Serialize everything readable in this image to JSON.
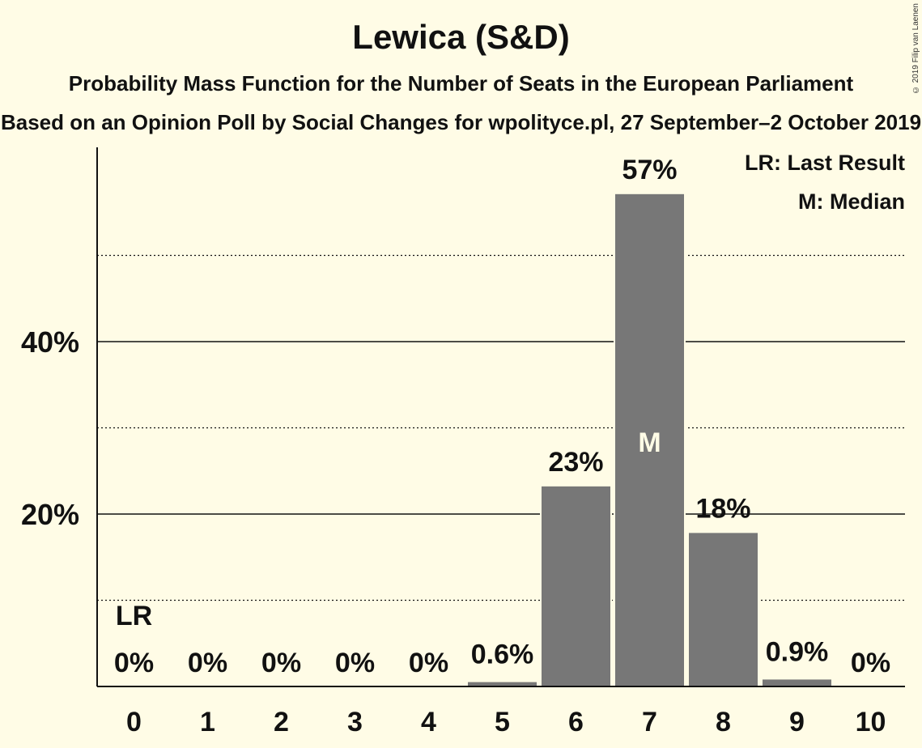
{
  "title": "Lewica (S&D)",
  "subtitle": "Probability Mass Function for the Number of Seats in the European Parliament",
  "subtitle2": "Based on an Opinion Poll by Social Changes for wpolityce.pl, 27 September–2 October 2019",
  "copyright": "© 2019 Filip van Laenen",
  "legend": {
    "last_result": "LR: Last Result",
    "median": "M: Median"
  },
  "colors": {
    "background": "#fffce6",
    "bar": "#777777"
  },
  "chart_data": {
    "type": "bar",
    "categories": [
      "0",
      "1",
      "2",
      "3",
      "4",
      "5",
      "6",
      "7",
      "8",
      "9",
      "10"
    ],
    "values": [
      0,
      0,
      0,
      0,
      0,
      0.6,
      23.3,
      57.2,
      17.9,
      0.9,
      0
    ],
    "value_labels": [
      "0%",
      "0%",
      "0%",
      "0%",
      "0%",
      "0.6%",
      "23%",
      "57%",
      "18%",
      "0.9%",
      "0%"
    ],
    "y_tick_labels": [
      {
        "value": 20,
        "label": "20%"
      },
      {
        "value": 40,
        "label": "40%"
      }
    ],
    "y_gridlines_solid": [
      20,
      40
    ],
    "y_gridlines_dotted": [
      10,
      30,
      50
    ],
    "ylim": [
      0,
      62
    ],
    "last_result": {
      "category": "0",
      "label": "LR"
    },
    "median": {
      "category": "7",
      "label": "M"
    },
    "legend_placement": "top-right"
  }
}
